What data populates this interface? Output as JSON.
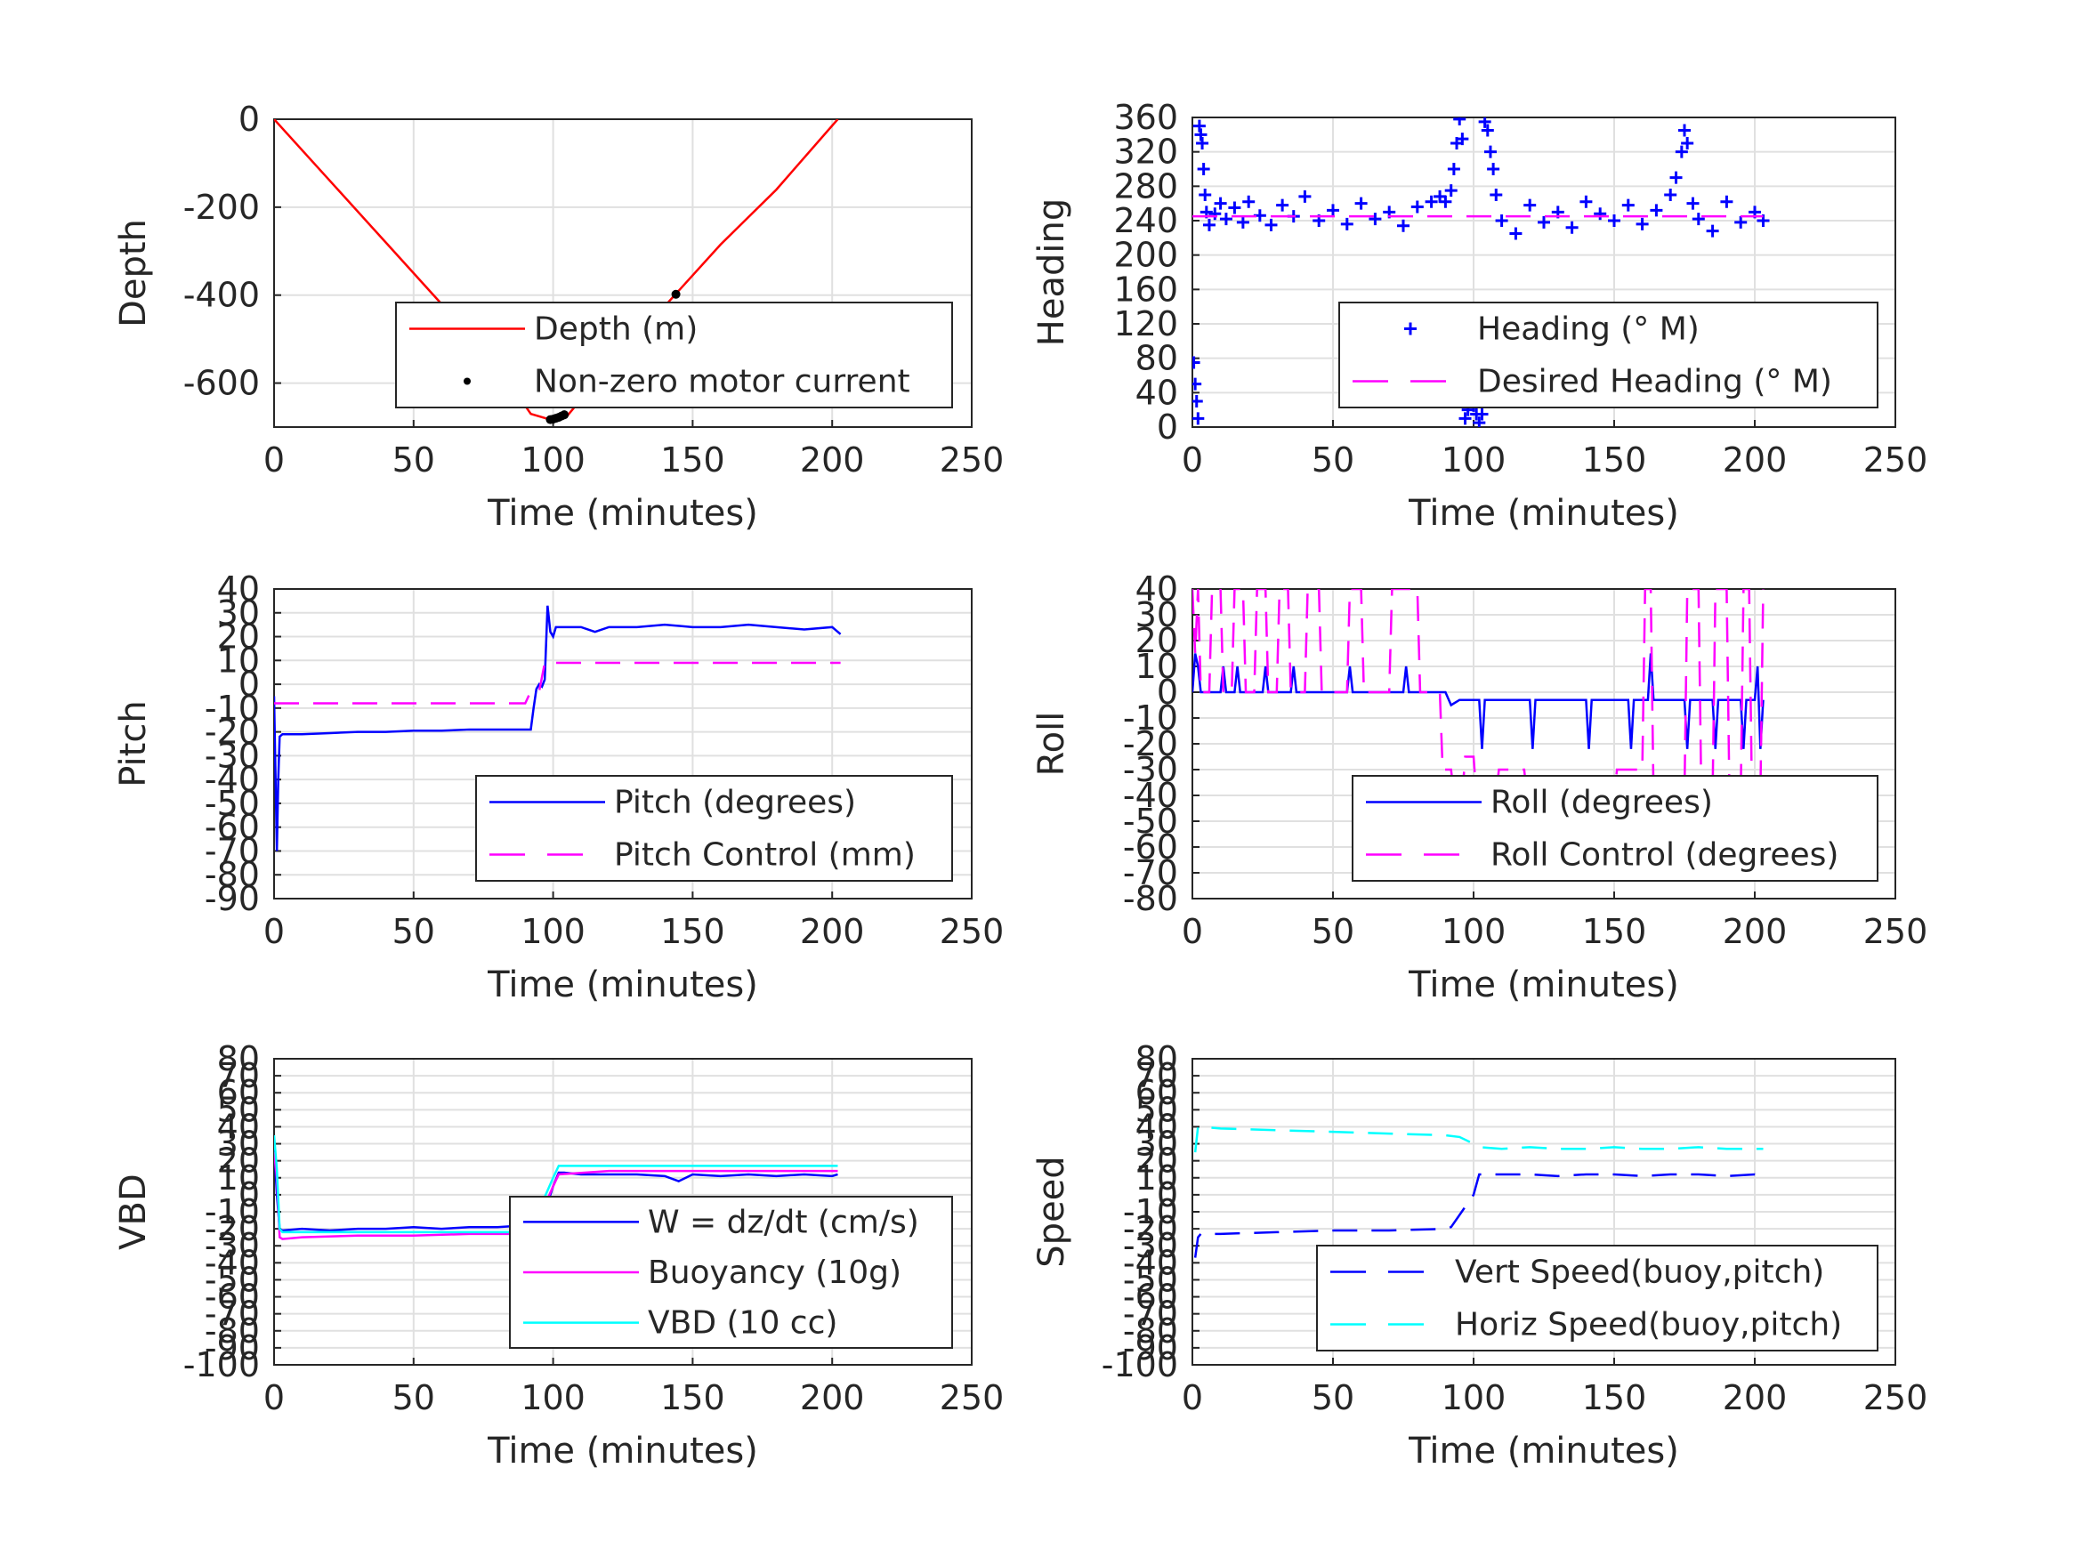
{
  "chart_data": [
    {
      "id": "depth",
      "type": "line",
      "xlabel": "Time (minutes)",
      "ylabel": "Depth",
      "xlim": [
        0,
        250
      ],
      "ylim": [
        -700,
        0
      ],
      "xticks": [
        0,
        50,
        100,
        150,
        200,
        250
      ],
      "yticks": [
        -600,
        -400,
        -200,
        0
      ],
      "grid": true,
      "legend_position": "bottom-right",
      "series": [
        {
          "name": "Depth (m)",
          "style": "solid",
          "color": "#ff0000",
          "x": [
            0,
            20,
            40,
            60,
            80,
            92,
            100,
            105,
            120,
            140,
            160,
            180,
            202
          ],
          "y": [
            0,
            -140,
            -280,
            -420,
            -560,
            -670,
            -685,
            -675,
            -560,
            -425,
            -285,
            -160,
            0
          ]
        },
        {
          "name": "Non-zero motor current",
          "style": "dot",
          "color": "#000000",
          "x": [
            99,
            100,
            101,
            102,
            103,
            104,
            144
          ],
          "y": [
            -683,
            -682,
            -680,
            -678,
            -675,
            -672,
            -398
          ]
        }
      ]
    },
    {
      "id": "heading",
      "type": "scatter",
      "xlabel": "Time (minutes)",
      "ylabel": "Heading",
      "xlim": [
        0,
        250
      ],
      "ylim": [
        0,
        360
      ],
      "xticks": [
        0,
        50,
        100,
        150,
        200,
        250
      ],
      "yticks": [
        0,
        40,
        80,
        120,
        160,
        200,
        240,
        280,
        320,
        360
      ],
      "grid": true,
      "legend_position": "bottom-right",
      "series": [
        {
          "name": "Heading (° M)",
          "style": "plus",
          "color": "#0000ff",
          "x": [
            0.5,
            1,
            1.5,
            2,
            2.5,
            3,
            3.5,
            4,
            4.5,
            5,
            6,
            8,
            10,
            12,
            15,
            18,
            20,
            24,
            28,
            32,
            36,
            40,
            45,
            50,
            55,
            60,
            65,
            70,
            75,
            80,
            85,
            88,
            90,
            92,
            93,
            94,
            95,
            96,
            97,
            98,
            99,
            100,
            101,
            102,
            103,
            104,
            105,
            106,
            107,
            108,
            110,
            115,
            120,
            125,
            130,
            135,
            140,
            145,
            150,
            155,
            160,
            165,
            170,
            172,
            174,
            175,
            176,
            178,
            180,
            185,
            190,
            195,
            200,
            203
          ],
          "y": [
            75,
            50,
            30,
            10,
            350,
            340,
            330,
            300,
            270,
            250,
            235,
            248,
            260,
            242,
            255,
            238,
            262,
            246,
            235,
            258,
            245,
            268,
            240,
            252,
            236,
            260,
            242,
            250,
            234,
            256,
            262,
            268,
            262,
            275,
            300,
            330,
            358,
            335,
            10,
            20,
            35,
            25,
            15,
            5,
            15,
            355,
            345,
            320,
            300,
            270,
            240,
            225,
            258,
            238,
            250,
            232,
            262,
            248,
            240,
            258,
            236,
            252,
            270,
            290,
            320,
            345,
            330,
            260,
            242,
            228,
            262,
            238,
            250,
            240
          ]
        },
        {
          "name": "Desired Heading (° M)",
          "style": "dashed",
          "color": "#ff00ff",
          "x": [
            0,
            203
          ],
          "y": [
            245,
            245
          ]
        }
      ]
    },
    {
      "id": "pitch",
      "type": "line",
      "xlabel": "Time (minutes)",
      "ylabel": "Pitch",
      "xlim": [
        0,
        250
      ],
      "ylim": [
        -90,
        40
      ],
      "xticks": [
        0,
        50,
        100,
        150,
        200,
        250
      ],
      "yticks": [
        -90,
        -80,
        -70,
        -60,
        -50,
        -40,
        -30,
        -20,
        -10,
        0,
        10,
        20,
        30,
        40
      ],
      "grid": true,
      "legend_position": "bottom-right",
      "series": [
        {
          "name": "Pitch (degrees)",
          "style": "solid",
          "color": "#0000ff",
          "x": [
            0,
            1,
            1.5,
            2,
            3,
            10,
            20,
            30,
            40,
            50,
            60,
            70,
            80,
            90,
            92,
            93,
            94,
            95,
            96,
            97,
            98,
            99,
            100,
            101,
            102,
            105,
            110,
            115,
            120,
            130,
            140,
            150,
            160,
            170,
            180,
            190,
            200,
            203
          ],
          "y": [
            -5,
            -70,
            -40,
            -22,
            -21,
            -21,
            -20.5,
            -20,
            -20,
            -19.5,
            -19.5,
            -19,
            -19,
            -19,
            -19,
            -10,
            -2,
            0,
            -1,
            2,
            33,
            22,
            20,
            24,
            24,
            24,
            24,
            22,
            24,
            24,
            25,
            24,
            24,
            25,
            24,
            23,
            24,
            21
          ]
        },
        {
          "name": "Pitch Control (mm)",
          "style": "dashed",
          "color": "#ff00ff",
          "x": [
            0,
            88,
            90,
            92,
            95,
            97,
            98,
            100,
            203
          ],
          "y": [
            -8,
            -8,
            -8,
            -3,
            -3,
            9,
            9,
            9,
            9
          ]
        }
      ]
    },
    {
      "id": "roll",
      "type": "line",
      "xlabel": "Time (minutes)",
      "ylabel": "Roll",
      "xlim": [
        0,
        250
      ],
      "ylim": [
        -80,
        40
      ],
      "xticks": [
        0,
        50,
        100,
        150,
        200,
        250
      ],
      "yticks": [
        -80,
        -70,
        -60,
        -50,
        -40,
        -30,
        -20,
        -10,
        0,
        10,
        20,
        30,
        40
      ],
      "grid": true,
      "legend_position": "bottom-right",
      "series": [
        {
          "name": "Roll (degrees)",
          "style": "solid",
          "color": "#0000ff",
          "x": [
            0,
            1,
            2,
            3,
            4,
            5,
            6,
            8,
            10,
            11,
            12,
            15,
            16,
            17,
            20,
            25,
            26,
            27,
            30,
            35,
            36,
            37,
            40,
            50,
            55,
            56,
            57,
            60,
            75,
            76,
            77,
            80,
            90,
            92,
            95,
            100,
            102,
            103,
            104,
            105,
            110,
            120,
            121,
            122,
            123,
            130,
            140,
            141,
            142,
            143,
            150,
            155,
            156,
            157,
            160,
            162,
            163,
            164,
            170,
            175,
            176,
            177,
            180,
            185,
            186,
            187,
            190,
            195,
            196,
            197,
            200,
            201,
            202,
            203
          ],
          "y": [
            0,
            15,
            10,
            0,
            0,
            0,
            0,
            0,
            0,
            10,
            0,
            0,
            10,
            0,
            0,
            0,
            10,
            0,
            0,
            0,
            10,
            0,
            0,
            0,
            0,
            10,
            0,
            0,
            0,
            10,
            0,
            0,
            0,
            -5,
            -3,
            -3,
            -3,
            -22,
            -3,
            -3,
            -3,
            -3,
            -22,
            -3,
            -3,
            -3,
            -3,
            -22,
            -3,
            -3,
            -3,
            -3,
            -22,
            -3,
            -3,
            -3,
            15,
            -3,
            -3,
            -3,
            -22,
            -3,
            -3,
            -3,
            -22,
            -3,
            -3,
            -3,
            -22,
            -3,
            -3,
            10,
            -22,
            -3
          ]
        },
        {
          "name": "Roll Control (degrees)",
          "style": "dashed",
          "color": "#ff00ff",
          "x": [
            0,
            1,
            2,
            3,
            6,
            7,
            10,
            11,
            14,
            15,
            18,
            19,
            22,
            23,
            26,
            27,
            30,
            31,
            34,
            35,
            40,
            41,
            45,
            46,
            55,
            56,
            60,
            61,
            70,
            71,
            80,
            81,
            88,
            89,
            92,
            93,
            96,
            97,
            100,
            101,
            108,
            109,
            118,
            119,
            128,
            129,
            140,
            141,
            150,
            151,
            160,
            161,
            163,
            164,
            175,
            176,
            180,
            181,
            185,
            186,
            190,
            191,
            195,
            196,
            198,
            199,
            202,
            203
          ],
          "y": [
            40,
            15,
            40,
            0,
            0,
            40,
            40,
            0,
            0,
            40,
            40,
            0,
            0,
            40,
            40,
            0,
            0,
            40,
            40,
            0,
            0,
            40,
            40,
            0,
            0,
            40,
            40,
            0,
            0,
            40,
            40,
            0,
            0,
            -30,
            -30,
            -40,
            -40,
            -25,
            -25,
            -40,
            -40,
            -30,
            -30,
            -40,
            -40,
            -35,
            -35,
            -40,
            -40,
            -30,
            -30,
            40,
            40,
            -40,
            -40,
            40,
            40,
            -40,
            -40,
            40,
            40,
            -40,
            -40,
            40,
            40,
            -40,
            -40,
            40
          ]
        }
      ]
    },
    {
      "id": "vbd",
      "type": "line",
      "xlabel": "Time (minutes)",
      "ylabel": "VBD",
      "xlim": [
        0,
        250
      ],
      "ylim": [
        -100,
        80
      ],
      "xticks": [
        0,
        50,
        100,
        150,
        200,
        250
      ],
      "yticks": [
        -100,
        -90,
        -80,
        -70,
        -60,
        -50,
        -40,
        -30,
        -20,
        -10,
        0,
        10,
        20,
        30,
        40,
        50,
        60,
        70,
        80
      ],
      "grid": true,
      "legend_position": "bottom-right",
      "series": [
        {
          "name": "W = dz/dt (cm/s)",
          "style": "solid",
          "color": "#0000ff",
          "x": [
            0,
            1,
            2,
            3,
            10,
            20,
            30,
            40,
            50,
            60,
            70,
            80,
            90,
            92,
            94,
            96,
            98,
            100,
            102,
            104,
            110,
            120,
            130,
            140,
            145,
            150,
            160,
            170,
            180,
            190,
            200,
            202
          ],
          "y": [
            30,
            0,
            -20,
            -21,
            -20,
            -21,
            -20,
            -20,
            -19,
            -20,
            -19,
            -19,
            -18,
            -18,
            -15,
            -10,
            -5,
            5,
            13,
            13,
            12,
            12,
            12,
            11,
            8,
            12,
            11,
            12,
            11,
            12,
            11,
            12
          ]
        },
        {
          "name": "Buoyancy (10g)",
          "style": "solid",
          "color": "#ff00ff",
          "x": [
            0,
            1,
            2,
            3,
            10,
            30,
            50,
            70,
            89,
            92,
            96,
            100,
            102,
            120,
            150,
            180,
            202
          ],
          "y": [
            25,
            10,
            -25,
            -26,
            -25,
            -24,
            -24,
            -23,
            -23,
            -23,
            -10,
            5,
            12,
            14,
            14,
            14,
            14
          ]
        },
        {
          "name": "VBD (10 cc)",
          "style": "solid",
          "color": "#00ffff",
          "x": [
            0,
            1,
            2,
            3,
            10,
            30,
            50,
            70,
            89,
            92,
            96,
            100,
            102,
            120,
            150,
            180,
            202
          ],
          "y": [
            35,
            15,
            -20,
            -22,
            -22,
            -22,
            -22,
            -22,
            -22,
            -22,
            -5,
            10,
            17,
            17,
            17,
            17,
            17
          ]
        }
      ]
    },
    {
      "id": "speed",
      "type": "line",
      "xlabel": "Time (minutes)",
      "ylabel": "Speed",
      "xlim": [
        0,
        250
      ],
      "ylim": [
        -100,
        80
      ],
      "xticks": [
        0,
        50,
        100,
        150,
        200,
        250
      ],
      "yticks": [
        -100,
        -90,
        -80,
        -70,
        -60,
        -50,
        -40,
        -30,
        -20,
        -10,
        0,
        10,
        20,
        30,
        40,
        50,
        60,
        70,
        80
      ],
      "grid": true,
      "legend_position": "bottom-right",
      "series": [
        {
          "name": "Vert Speed(buoy,pitch)",
          "style": "dashed",
          "color": "#0000ff",
          "x": [
            1,
            2,
            3,
            10,
            30,
            50,
            70,
            90,
            92,
            100,
            102,
            110,
            120,
            130,
            140,
            150,
            160,
            170,
            180,
            190,
            200,
            203
          ],
          "y": [
            -37,
            -25,
            -23,
            -23,
            -22,
            -21,
            -21,
            -20,
            -19,
            0,
            12,
            12,
            12,
            11,
            12,
            12,
            11,
            12,
            12,
            11,
            12,
            11
          ]
        },
        {
          "name": "Horiz Speed(buoy,pitch)",
          "style": "dashed",
          "color": "#00ffff",
          "x": [
            1,
            2,
            3,
            10,
            30,
            50,
            70,
            90,
            95,
            100,
            102,
            110,
            120,
            130,
            140,
            150,
            160,
            170,
            180,
            190,
            200,
            203
          ],
          "y": [
            25,
            40,
            40,
            39,
            38,
            37,
            36,
            35,
            34,
            30,
            28,
            27,
            28,
            27,
            27,
            28,
            27,
            27,
            28,
            27,
            27,
            27
          ]
        }
      ]
    }
  ]
}
